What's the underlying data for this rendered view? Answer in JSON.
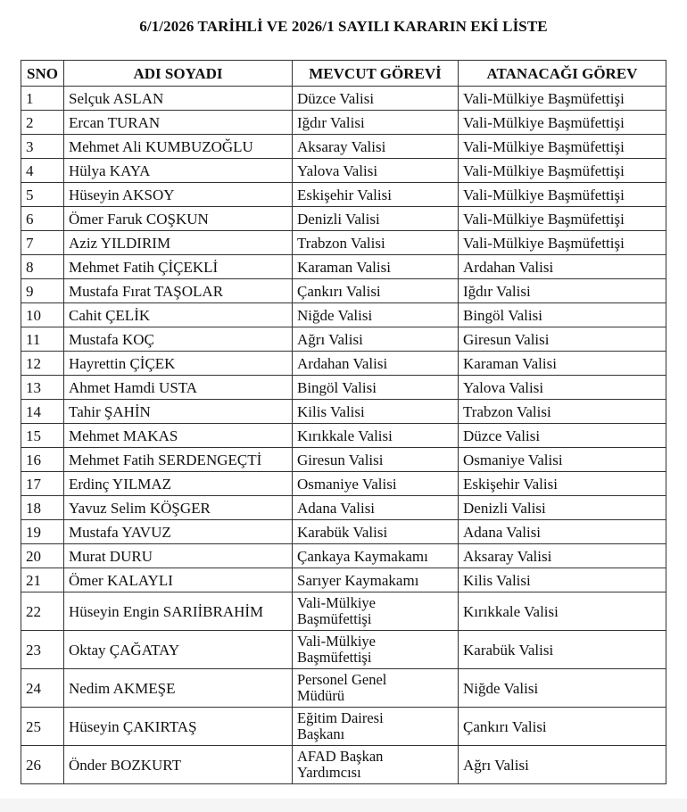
{
  "title": "6/1/2026 TARİHLİ VE 2026/1  SAYILI KARARIN EKİ LİSTE",
  "headers": [
    "SNO",
    "ADI SOYADI",
    "MEVCUT GÖREVİ",
    "ATANACAĞI GÖREV"
  ],
  "rows": [
    {
      "sno": "1",
      "name": "Selçuk ASLAN",
      "current": "Düzce Valisi",
      "new": "Vali-Mülkiye Başmüfettişi"
    },
    {
      "sno": "2",
      "name": "Ercan TURAN",
      "current": "Iğdır Valisi",
      "new": "Vali-Mülkiye Başmüfettişi"
    },
    {
      "sno": "3",
      "name": "Mehmet Ali KUMBUZOĞLU",
      "current": "Aksaray Valisi",
      "new": "Vali-Mülkiye Başmüfettişi"
    },
    {
      "sno": "4",
      "name": "Hülya KAYA",
      "current": "Yalova Valisi",
      "new": "Vali-Mülkiye Başmüfettişi"
    },
    {
      "sno": "5",
      "name": "Hüseyin AKSOY",
      "current": "Eskişehir Valisi",
      "new": "Vali-Mülkiye Başmüfettişi"
    },
    {
      "sno": "6",
      "name": "Ömer Faruk COŞKUN",
      "current": "Denizli Valisi",
      "new": "Vali-Mülkiye Başmüfettişi"
    },
    {
      "sno": "7",
      "name": "Aziz YILDIRIM",
      "current": "Trabzon Valisi",
      "new": "Vali-Mülkiye Başmüfettişi"
    },
    {
      "sno": "8",
      "name": "Mehmet Fatih ÇİÇEKLİ",
      "current": "Karaman Valisi",
      "new": "Ardahan Valisi"
    },
    {
      "sno": "9",
      "name": "Mustafa Fırat TAŞOLAR",
      "current": "Çankırı Valisi",
      "new": "Iğdır Valisi"
    },
    {
      "sno": "10",
      "name": "Cahit ÇELİK",
      "current": "Niğde Valisi",
      "new": "Bingöl Valisi"
    },
    {
      "sno": "11",
      "name": "Mustafa KOÇ",
      "current": "Ağrı Valisi",
      "new": "Giresun Valisi"
    },
    {
      "sno": "12",
      "name": "Hayrettin ÇİÇEK",
      "current": "Ardahan Valisi",
      "new": "Karaman Valisi"
    },
    {
      "sno": "13",
      "name": "Ahmet Hamdi USTA",
      "current": "Bingöl Valisi",
      "new": "Yalova Valisi"
    },
    {
      "sno": "14",
      "name": "Tahir ŞAHİN",
      "current": "Kilis Valisi",
      "new": "Trabzon Valisi"
    },
    {
      "sno": "15",
      "name": "Mehmet MAKAS",
      "current": "Kırıkkale Valisi",
      "new": "Düzce Valisi"
    },
    {
      "sno": "16",
      "name": "Mehmet Fatih SERDENGEÇTİ",
      "current": "Giresun Valisi",
      "new": "Osmaniye Valisi"
    },
    {
      "sno": "17",
      "name": "Erdinç YILMAZ",
      "current": "Osmaniye Valisi",
      "new": "Eskişehir Valisi"
    },
    {
      "sno": "18",
      "name": "Yavuz Selim KÖŞGER",
      "current": "Adana Valisi",
      "new": "Denizli Valisi"
    },
    {
      "sno": "19",
      "name": "Mustafa YAVUZ",
      "current": "Karabük Valisi",
      "new": "Adana Valisi"
    },
    {
      "sno": "20",
      "name": "Murat DURU",
      "current": "Çankaya Kaymakamı",
      "new": "Aksaray Valisi"
    },
    {
      "sno": "21",
      "name": "Ömer KALAYLI",
      "current": "Sarıyer Kaymakamı",
      "new": "Kilis Valisi"
    },
    {
      "sno": "22",
      "name": "Hüseyin Engin SARIİBRAHİM",
      "current1": "Vali-Mülkiye",
      "current2": "Başmüfettişi",
      "new": "Kırıkkale Valisi"
    },
    {
      "sno": "23",
      "name": "Oktay ÇAĞATAY",
      "current1": "Vali-Mülkiye",
      "current2": "Başmüfettişi",
      "new": "Karabük Valisi"
    },
    {
      "sno": "24",
      "name": "Nedim AKMEŞE",
      "current1": "Personel Genel",
      "current2": "Müdürü",
      "new": "Niğde Valisi"
    },
    {
      "sno": "25",
      "name": "Hüseyin ÇAKIRTAŞ",
      "current1": "Eğitim Dairesi",
      "current2": "Başkanı",
      "new": "Çankırı Valisi"
    },
    {
      "sno": "26",
      "name": "Önder BOZKURT",
      "current1": "AFAD Başkan",
      "current2": "Yardımcısı",
      "new": "Ağrı Valisi"
    }
  ]
}
